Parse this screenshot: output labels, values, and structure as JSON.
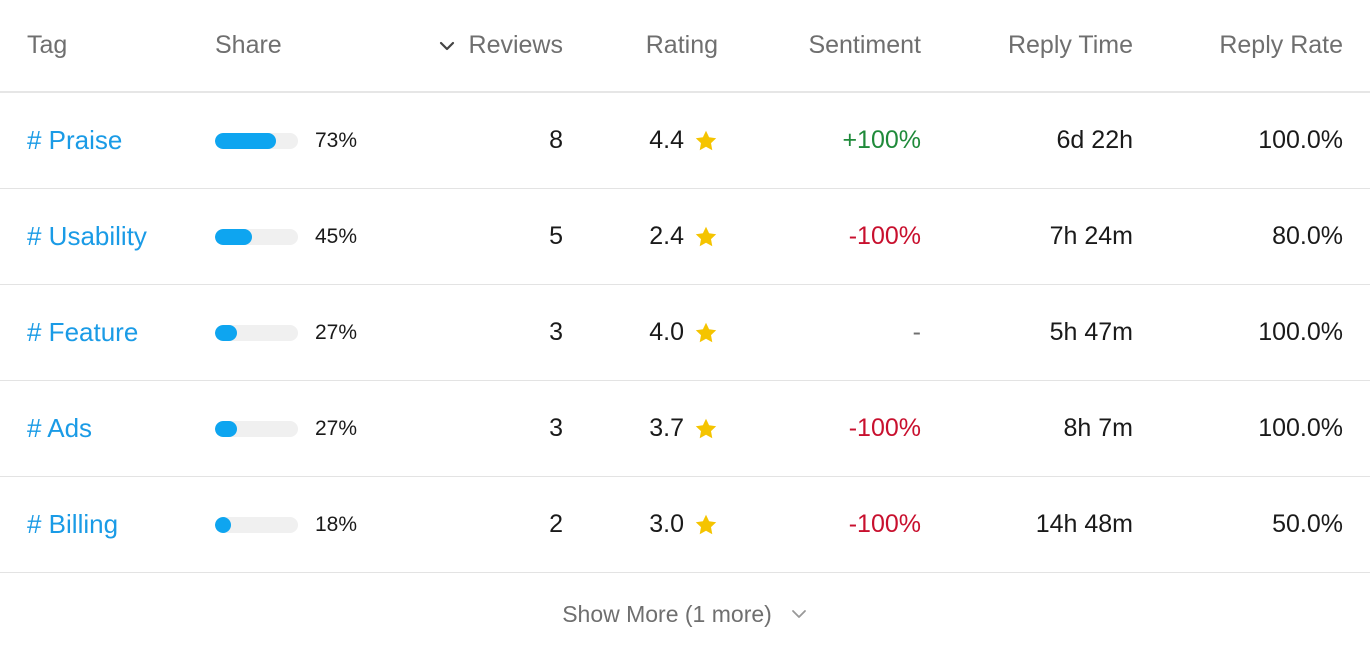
{
  "header": {
    "tag": "Tag",
    "share": "Share",
    "reviews": "Reviews",
    "rating": "Rating",
    "sentiment": "Sentiment",
    "reply_time": "Reply Time",
    "reply_rate": "Reply Rate"
  },
  "rows": [
    {
      "tag": "# Praise",
      "share_pct": "73%",
      "share_fraction": 0.73,
      "reviews": "8",
      "rating": "4.4",
      "sentiment": "+100%",
      "sentiment_tone": "positive",
      "reply_time": "6d 22h",
      "reply_rate": "100.0%"
    },
    {
      "tag": "# Usability",
      "share_pct": "45%",
      "share_fraction": 0.45,
      "reviews": "5",
      "rating": "2.4",
      "sentiment": "-100%",
      "sentiment_tone": "negative",
      "reply_time": "7h 24m",
      "reply_rate": "80.0%"
    },
    {
      "tag": "# Feature",
      "share_pct": "27%",
      "share_fraction": 0.27,
      "reviews": "3",
      "rating": "4.0",
      "sentiment": "-",
      "sentiment_tone": "neutral",
      "reply_time": "5h 47m",
      "reply_rate": "100.0%"
    },
    {
      "tag": "# Ads",
      "share_pct": "27%",
      "share_fraction": 0.27,
      "reviews": "3",
      "rating": "3.7",
      "sentiment": "-100%",
      "sentiment_tone": "negative",
      "reply_time": "8h 7m",
      "reply_rate": "100.0%"
    },
    {
      "tag": "# Billing",
      "share_pct": "18%",
      "share_fraction": 0.18,
      "reviews": "2",
      "rating": "3.0",
      "sentiment": "-100%",
      "sentiment_tone": "negative",
      "reply_time": "14h 48m",
      "reply_rate": "50.0%"
    }
  ],
  "footer": {
    "show_more": "Show More (1 more)"
  },
  "colors": {
    "accent": "#1a9be6",
    "bar": "#0ea5f0",
    "star": "#f5c400",
    "positive": "#1f8a3a",
    "negative": "#c8102e"
  },
  "icons": {
    "sort": "chevron-down-icon",
    "rating": "star-icon",
    "show_more": "chevron-down-icon"
  }
}
